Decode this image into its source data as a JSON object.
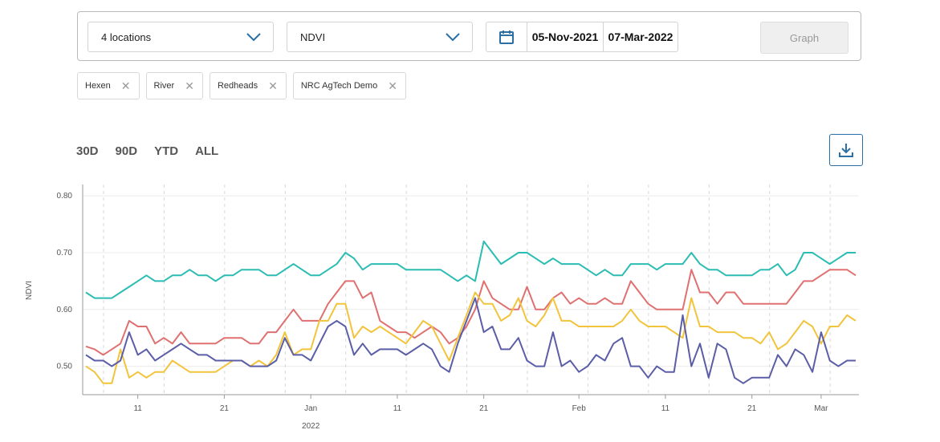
{
  "filters": {
    "locations_label": "4 locations",
    "metric_label": "NDVI",
    "start_date": "05-Nov-2021",
    "end_date": "07-Mar-2022",
    "graph_label": "Graph"
  },
  "chips": [
    "Hexen",
    "River",
    "Redheads",
    "NRC AgTech Demo"
  ],
  "range_buttons": [
    "30D",
    "90D",
    "YTD",
    "ALL"
  ],
  "colors": {
    "accent": "#2a6fa5",
    "teal": "#2bbcb3",
    "red": "#e07070",
    "yellow": "#f2c43c",
    "purple": "#5b5ea6"
  },
  "chart_data": {
    "type": "line",
    "ylabel": "NDVI",
    "xlabel": "",
    "ylim": [
      0.45,
      0.82
    ],
    "yticks": [
      "0.80",
      "0.70",
      "0.60",
      "0.50"
    ],
    "xticks": [
      {
        "day": 6,
        "label": "11"
      },
      {
        "day": 16,
        "label": "21"
      },
      {
        "day": 26,
        "label": "Jan",
        "sublabel": "2022"
      },
      {
        "day": 36,
        "label": "11"
      },
      {
        "day": 46,
        "label": "21"
      },
      {
        "day": 57,
        "label": "Feb"
      },
      {
        "day": 67,
        "label": "11"
      },
      {
        "day": 77,
        "label": "21"
      },
      {
        "day": 85,
        "label": "Mar"
      }
    ],
    "x_note": "x values are observation indices (~1 per day) from 05-Nov-2021 to 07-Mar-2022",
    "series": [
      {
        "name": "Teal",
        "color": "#2bbcb3",
        "values": [
          0.63,
          0.62,
          0.62,
          0.62,
          0.63,
          0.64,
          0.65,
          0.66,
          0.65,
          0.65,
          0.66,
          0.66,
          0.67,
          0.66,
          0.66,
          0.65,
          0.66,
          0.66,
          0.67,
          0.67,
          0.67,
          0.66,
          0.66,
          0.67,
          0.68,
          0.67,
          0.66,
          0.66,
          0.67,
          0.68,
          0.7,
          0.69,
          0.67,
          0.68,
          0.68,
          0.68,
          0.68,
          0.67,
          0.67,
          0.67,
          0.67,
          0.67,
          0.66,
          0.65,
          0.66,
          0.65,
          0.72,
          0.7,
          0.68,
          0.69,
          0.7,
          0.7,
          0.69,
          0.68,
          0.69,
          0.68,
          0.68,
          0.68,
          0.67,
          0.66,
          0.67,
          0.66,
          0.66,
          0.68,
          0.68,
          0.68,
          0.67,
          0.68,
          0.68,
          0.68,
          0.7,
          0.68,
          0.67,
          0.67,
          0.66,
          0.66,
          0.66,
          0.66,
          0.67,
          0.67,
          0.68,
          0.66,
          0.67,
          0.7,
          0.7,
          0.69,
          0.68,
          0.69,
          0.7,
          0.7
        ]
      },
      {
        "name": "Red",
        "color": "#e07070",
        "values": [
          0.535,
          0.53,
          0.52,
          0.53,
          0.54,
          0.58,
          0.57,
          0.57,
          0.54,
          0.55,
          0.54,
          0.56,
          0.54,
          0.54,
          0.54,
          0.54,
          0.55,
          0.55,
          0.55,
          0.54,
          0.54,
          0.56,
          0.56,
          0.58,
          0.6,
          0.58,
          0.58,
          0.58,
          0.61,
          0.63,
          0.65,
          0.65,
          0.62,
          0.63,
          0.58,
          0.57,
          0.56,
          0.56,
          0.55,
          0.56,
          0.57,
          0.56,
          0.54,
          0.55,
          0.57,
          0.6,
          0.65,
          0.62,
          0.61,
          0.6,
          0.6,
          0.64,
          0.6,
          0.6,
          0.62,
          0.63,
          0.61,
          0.62,
          0.61,
          0.61,
          0.62,
          0.61,
          0.61,
          0.65,
          0.63,
          0.61,
          0.6,
          0.6,
          0.6,
          0.6,
          0.67,
          0.63,
          0.63,
          0.61,
          0.63,
          0.63,
          0.61,
          0.61,
          0.61,
          0.61,
          0.61,
          0.61,
          0.63,
          0.65,
          0.65,
          0.66,
          0.67,
          0.67,
          0.67,
          0.66
        ]
      },
      {
        "name": "Yellow",
        "color": "#f2c43c",
        "values": [
          0.5,
          0.49,
          0.47,
          0.47,
          0.53,
          0.48,
          0.49,
          0.48,
          0.49,
          0.49,
          0.51,
          0.5,
          0.49,
          0.49,
          0.49,
          0.49,
          0.5,
          0.51,
          0.51,
          0.5,
          0.51,
          0.5,
          0.52,
          0.56,
          0.52,
          0.53,
          0.53,
          0.58,
          0.58,
          0.61,
          0.61,
          0.55,
          0.57,
          0.56,
          0.57,
          0.56,
          0.55,
          0.54,
          0.56,
          0.58,
          0.57,
          0.54,
          0.51,
          0.55,
          0.59,
          0.63,
          0.61,
          0.61,
          0.58,
          0.59,
          0.62,
          0.58,
          0.57,
          0.59,
          0.62,
          0.58,
          0.58,
          0.57,
          0.57,
          0.57,
          0.57,
          0.57,
          0.58,
          0.6,
          0.58,
          0.57,
          0.57,
          0.57,
          0.56,
          0.55,
          0.62,
          0.57,
          0.57,
          0.56,
          0.56,
          0.56,
          0.55,
          0.55,
          0.54,
          0.56,
          0.53,
          0.54,
          0.56,
          0.58,
          0.57,
          0.54,
          0.57,
          0.57,
          0.59,
          0.58
        ]
      },
      {
        "name": "Purple",
        "color": "#5b5ea6",
        "values": [
          0.52,
          0.51,
          0.51,
          0.5,
          0.51,
          0.56,
          0.52,
          0.53,
          0.51,
          0.52,
          0.53,
          0.54,
          0.53,
          0.52,
          0.52,
          0.51,
          0.51,
          0.51,
          0.51,
          0.5,
          0.5,
          0.5,
          0.51,
          0.55,
          0.52,
          0.52,
          0.51,
          0.54,
          0.57,
          0.58,
          0.57,
          0.52,
          0.54,
          0.52,
          0.53,
          0.53,
          0.53,
          0.52,
          0.53,
          0.54,
          0.53,
          0.5,
          0.49,
          0.54,
          0.58,
          0.62,
          0.56,
          0.57,
          0.53,
          0.53,
          0.55,
          0.51,
          0.5,
          0.5,
          0.56,
          0.5,
          0.51,
          0.49,
          0.5,
          0.52,
          0.51,
          0.54,
          0.55,
          0.5,
          0.5,
          0.48,
          0.5,
          0.49,
          0.49,
          0.59,
          0.5,
          0.54,
          0.48,
          0.54,
          0.53,
          0.48,
          0.47,
          0.48,
          0.48,
          0.48,
          0.52,
          0.5,
          0.53,
          0.52,
          0.49,
          0.56,
          0.51,
          0.5,
          0.51,
          0.51
        ]
      }
    ]
  }
}
